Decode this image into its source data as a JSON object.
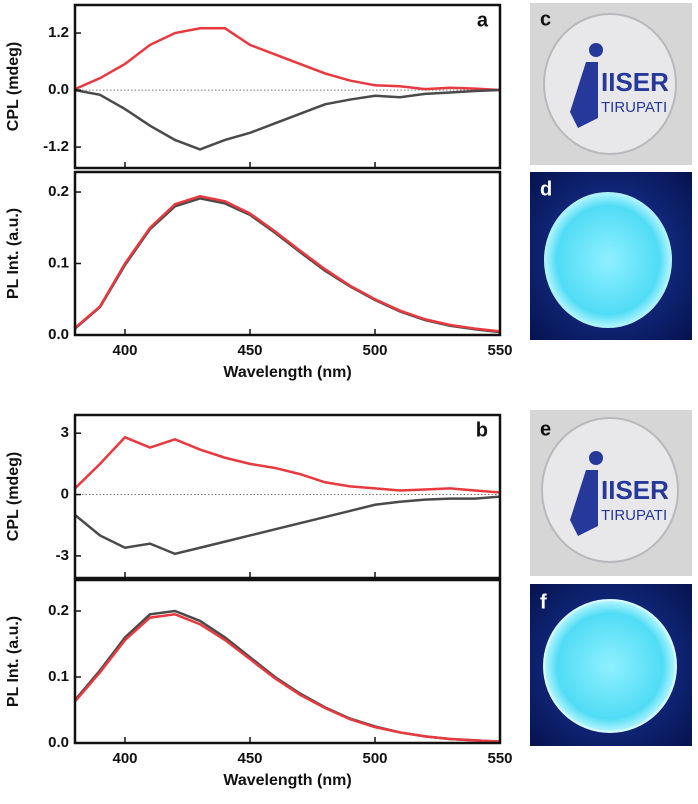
{
  "chart_data": [
    {
      "type": "line",
      "annotation": "a",
      "ylabel": "CPL (mdeg)",
      "xlim": [
        380,
        550
      ],
      "xticks": [
        400,
        450,
        500,
        550
      ],
      "show_xtick_labels": false,
      "ylim": [
        -1.64,
        1.79
      ],
      "yticks": [
        -1.2,
        {
          "value": 0,
          "label": "0.0"
        },
        1.2
      ],
      "hline": 0,
      "x": [
        380,
        390,
        400,
        410,
        420,
        430,
        440,
        450,
        460,
        470,
        480,
        490,
        500,
        510,
        520,
        530,
        540,
        550
      ],
      "series": [
        {
          "color": "#e8393f",
          "values": [
            0.02,
            0.25,
            0.55,
            0.95,
            1.2,
            1.3,
            1.3,
            0.95,
            0.75,
            0.55,
            0.35,
            0.2,
            0.1,
            0.08,
            0.02,
            0.05,
            0.03,
            0.0
          ]
        },
        {
          "color": "#4a4a4a",
          "values": [
            0.0,
            -0.1,
            -0.4,
            -0.75,
            -1.05,
            -1.25,
            -1.05,
            -0.9,
            -0.7,
            -0.5,
            -0.3,
            -0.2,
            -0.12,
            -0.15,
            -0.08,
            -0.05,
            -0.02,
            0.0
          ]
        }
      ]
    },
    {
      "type": "line",
      "ylabel": "PL Int. (a.u.)",
      "xlabel": "Wavelength (nm)",
      "xlim": [
        380,
        550
      ],
      "xticks": [
        400,
        450,
        500,
        550
      ],
      "show_xtick_labels": true,
      "ylim": [
        0,
        0.228
      ],
      "yticks": [
        {
          "value": 0,
          "label": "0.0"
        },
        0.1,
        0.2
      ],
      "x": [
        380,
        390,
        400,
        410,
        420,
        430,
        440,
        450,
        460,
        470,
        480,
        490,
        500,
        510,
        520,
        530,
        540,
        550
      ],
      "series": [
        {
          "color": "#4a4a4a",
          "values": [
            0.009,
            0.039,
            0.098,
            0.148,
            0.18,
            0.191,
            0.184,
            0.168,
            0.143,
            0.116,
            0.09,
            0.068,
            0.049,
            0.033,
            0.021,
            0.013,
            0.008,
            0.004
          ]
        },
        {
          "color": "#e8393f",
          "values": [
            0.01,
            0.04,
            0.1,
            0.15,
            0.183,
            0.194,
            0.187,
            0.17,
            0.145,
            0.118,
            0.092,
            0.069,
            0.05,
            0.034,
            0.022,
            0.014,
            0.009,
            0.005
          ]
        }
      ]
    },
    {
      "type": "line",
      "annotation": "b",
      "ylabel": "CPL (mdeg)",
      "xlim": [
        380,
        550
      ],
      "xticks": [
        400,
        450,
        500,
        550
      ],
      "show_xtick_labels": false,
      "ylim": [
        -4.08,
        3.89
      ],
      "yticks": [
        -3,
        0,
        3
      ],
      "hline": 0,
      "x": [
        380,
        390,
        400,
        410,
        420,
        430,
        440,
        450,
        460,
        470,
        480,
        490,
        500,
        510,
        520,
        530,
        540,
        550
      ],
      "series": [
        {
          "color": "#e8393f",
          "values": [
            0.3,
            1.5,
            2.8,
            2.3,
            2.7,
            2.2,
            1.8,
            1.5,
            1.3,
            1.0,
            0.6,
            0.4,
            0.3,
            0.2,
            0.25,
            0.3,
            0.2,
            0.1
          ]
        },
        {
          "color": "#4a4a4a",
          "values": [
            -1.0,
            -2.0,
            -2.6,
            -2.4,
            -2.9,
            -2.6,
            -2.3,
            -2.0,
            -1.7,
            -1.4,
            -1.1,
            -0.8,
            -0.5,
            -0.35,
            -0.25,
            -0.2,
            -0.2,
            -0.1
          ]
        }
      ]
    },
    {
      "type": "line",
      "ylabel": "PL Int. (a.u.)",
      "xlabel": "Wavelength (nm)",
      "xlim": [
        380,
        550
      ],
      "xticks": [
        400,
        450,
        500,
        550
      ],
      "show_xtick_labels": true,
      "ylim": [
        0,
        0.247
      ],
      "yticks": [
        {
          "value": 0,
          "label": "0.0"
        },
        0.1,
        0.2
      ],
      "x": [
        380,
        390,
        400,
        410,
        420,
        430,
        440,
        450,
        460,
        470,
        480,
        490,
        500,
        510,
        520,
        530,
        540,
        550
      ],
      "series": [
        {
          "color": "#4a4a4a",
          "values": [
            0.065,
            0.11,
            0.16,
            0.195,
            0.2,
            0.185,
            0.16,
            0.13,
            0.1,
            0.075,
            0.054,
            0.037,
            0.025,
            0.016,
            0.01,
            0.006,
            0.004,
            0.002
          ]
        },
        {
          "color": "#e8393f",
          "values": [
            0.063,
            0.107,
            0.156,
            0.19,
            0.195,
            0.18,
            0.156,
            0.127,
            0.098,
            0.073,
            0.053,
            0.036,
            0.024,
            0.016,
            0.01,
            0.006,
            0.004,
            0.002
          ]
        }
      ]
    }
  ],
  "photos": [
    {
      "label": "c",
      "logo": [
        "IISER",
        "TIRUPATI"
      ]
    },
    {
      "label": "d"
    },
    {
      "label": "e",
      "logo": [
        "IISER",
        "TIRUPATI"
      ]
    },
    {
      "label": "f"
    }
  ]
}
